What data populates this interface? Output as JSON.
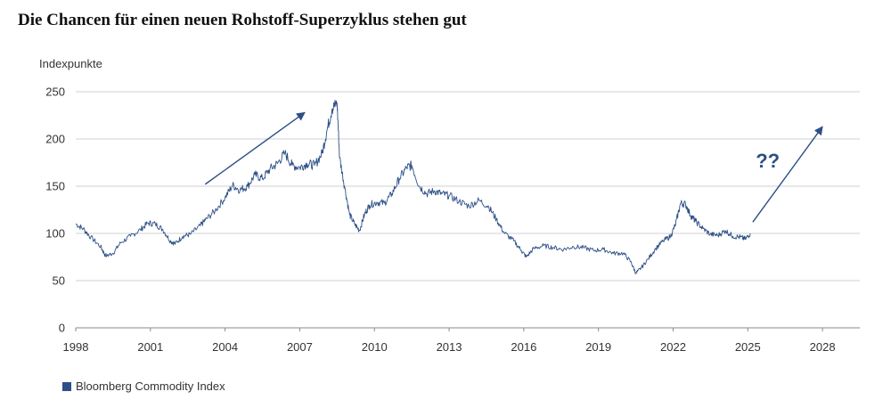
{
  "chart_data": {
    "type": "line",
    "title": "Die Chancen für einen neuen Rohstoff-Superzyklus stehen gut",
    "ylabel": "Indexpunkte",
    "xlabel": "",
    "xlim": [
      1998,
      2029.5
    ],
    "ylim": [
      0,
      250
    ],
    "x_ticks": [
      "1998",
      "2001",
      "2004",
      "2007",
      "2010",
      "2013",
      "2016",
      "2019",
      "2022",
      "2025",
      "2028"
    ],
    "y_ticks": [
      "0",
      "50",
      "100",
      "150",
      "200",
      "250"
    ],
    "grid": true,
    "legend": "bottom-left",
    "series": [
      {
        "name": "Bloomberg Commodity Index",
        "color": "#2c4f86",
        "x": [
          1998.0,
          1998.3,
          1998.6,
          1999.0,
          1999.2,
          1999.5,
          1999.8,
          2000.2,
          2000.6,
          2000.9,
          2001.2,
          2001.5,
          2001.8,
          2002.0,
          2002.3,
          2002.6,
          2003.0,
          2003.2,
          2003.6,
          2004.0,
          2004.3,
          2004.6,
          2004.9,
          2005.2,
          2005.5,
          2005.8,
          2006.1,
          2006.4,
          2006.7,
          2007.0,
          2007.3,
          2007.6,
          2007.9,
          2008.1,
          2008.3,
          2008.5,
          2008.6,
          2008.8,
          2009.0,
          2009.2,
          2009.4,
          2009.6,
          2009.8,
          2010.1,
          2010.4,
          2010.7,
          2011.0,
          2011.3,
          2011.5,
          2011.8,
          2012.1,
          2012.4,
          2012.7,
          2013.0,
          2013.4,
          2013.8,
          2014.2,
          2014.6,
          2014.9,
          2015.2,
          2015.6,
          2015.9,
          2016.1,
          2016.4,
          2016.8,
          2017.2,
          2017.6,
          2018.0,
          2018.4,
          2018.8,
          2019.2,
          2019.6,
          2020.0,
          2020.3,
          2020.5,
          2020.7,
          2021.0,
          2021.3,
          2021.6,
          2021.9,
          2022.1,
          2022.3,
          2022.5,
          2022.7,
          2022.9,
          2023.2,
          2023.5,
          2023.8,
          2024.1,
          2024.4,
          2024.7,
          2024.9,
          2025.1
        ],
        "values": [
          110,
          105,
          96,
          86,
          76,
          79,
          90,
          97,
          104,
          111,
          110,
          104,
          92,
          89,
          97,
          99,
          108,
          114,
          124,
          138,
          151,
          146,
          150,
          162,
          158,
          168,
          174,
          185,
          172,
          170,
          174,
          172,
          185,
          210,
          232,
          238,
          180,
          150,
          120,
          110,
          103,
          120,
          130,
          133,
          132,
          142,
          158,
          170,
          172,
          150,
          142,
          145,
          142,
          140,
          134,
          129,
          135,
          128,
          115,
          101,
          92,
          82,
          75,
          84,
          87,
          85,
          83,
          86,
          85,
          82,
          83,
          79,
          79,
          70,
          58,
          63,
          73,
          84,
          92,
          97,
          110,
          132,
          131,
          119,
          113,
          105,
          99,
          98,
          103,
          97,
          96,
          94,
          100
        ]
      }
    ],
    "annotations": [
      {
        "type": "arrow",
        "from": [
          2003.2,
          152
        ],
        "to": [
          2007.2,
          228
        ]
      },
      {
        "type": "arrow",
        "from": [
          2025.2,
          112
        ],
        "to": [
          2028.0,
          213
        ]
      },
      {
        "type": "text",
        "text": "??",
        "x": 2025.8,
        "y": 170
      }
    ]
  }
}
